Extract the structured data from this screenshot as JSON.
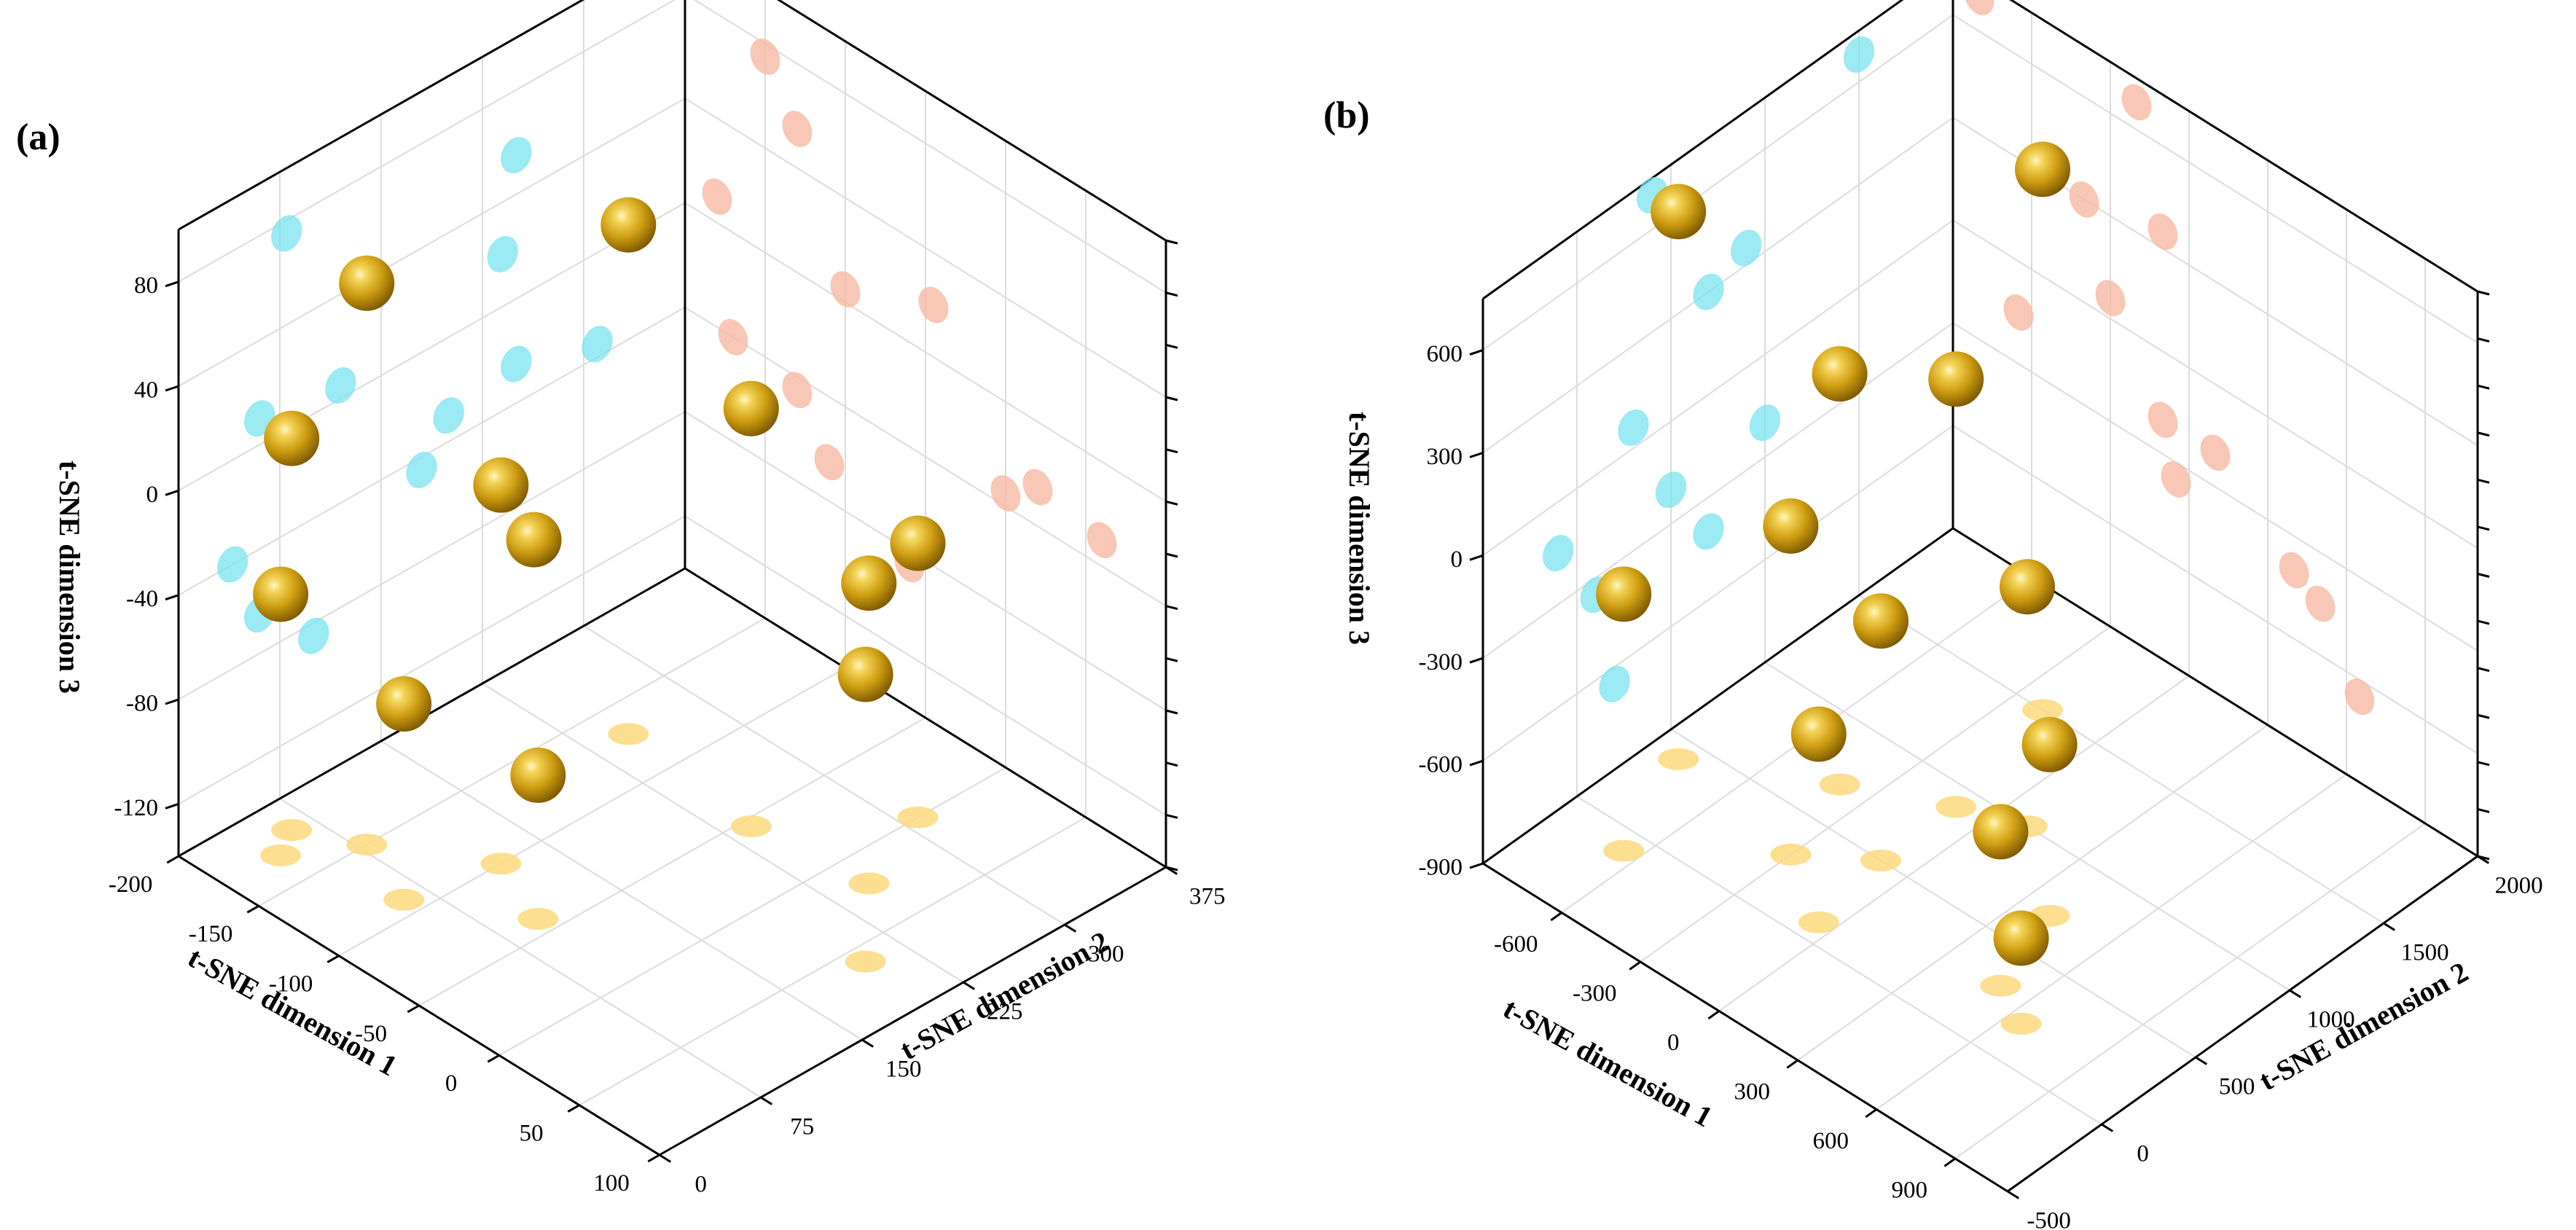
{
  "colors": {
    "proj_yz": "#7be3f0",
    "proj_xz": "#f7b9a3",
    "proj_xy": "#fcd97e",
    "sphere_light": "#fff3b8",
    "sphere_mid": "#e3b928",
    "sphere_dark": "#8a6300"
  },
  "chart_data": [
    {
      "type": "scatter",
      "subtype": "3d-scatter-with-wall-projections",
      "panel_label": "(a)",
      "xlabel": "t-SNE dimension 1",
      "ylabel": "t-SNE dimension 2",
      "zlabel": "t-SNE dimension 3",
      "xlim": [
        -200,
        100
      ],
      "ylim": [
        0,
        375
      ],
      "zlim": [
        -140,
        100
      ],
      "x_ticks": [
        "-200",
        "-150",
        "-100",
        "-50",
        "0",
        "50",
        "100"
      ],
      "y_ticks": [
        "0",
        "75",
        "150",
        "225",
        "300",
        "375"
      ],
      "z_ticks": [
        "-120",
        "-80",
        "-40",
        "0",
        "40",
        "80"
      ],
      "grid": true,
      "points": [
        {
          "x": -150,
          "y": 80,
          "z": 75
        },
        {
          "x": -130,
          "y": 250,
          "z": 55
        },
        {
          "x": -45,
          "y": 240,
          "z": 20
        },
        {
          "x": -180,
          "y": 60,
          "z": 10
        },
        {
          "x": -100,
          "y": 120,
          "z": 5
        },
        {
          "x": 0,
          "y": 310,
          "z": -35
        },
        {
          "x": -170,
          "y": 40,
          "z": -40
        },
        {
          "x": -130,
          "y": 180,
          "z": -45
        },
        {
          "x": -60,
          "y": 100,
          "z": -85
        },
        {
          "x": -110,
          "y": 60,
          "z": -65
        },
        {
          "x": 60,
          "y": 200,
          "z": -30
        },
        {
          "x": 20,
          "y": 250,
          "z": -25
        }
      ]
    },
    {
      "type": "scatter",
      "subtype": "3d-scatter-with-wall-projections",
      "panel_label": "(b)",
      "xlabel": "t-SNE dimension 1",
      "ylabel": "t-SNE dimension 2",
      "zlabel": "t-SNE dimension 3",
      "xlim": [
        -900,
        1100
      ],
      "ylim": [
        -500,
        2000
      ],
      "zlim": [
        -900,
        750
      ],
      "x_ticks": [
        "-600",
        "-300",
        "0",
        "300",
        "600",
        "900"
      ],
      "y_ticks": [
        "-500",
        "0",
        "500",
        "1000",
        "1500",
        "2000"
      ],
      "z_ticks": [
        "-900",
        "-600",
        "-300",
        "0",
        "300",
        "600"
      ],
      "grid": true,
      "points": [
        {
          "x": -800,
          "y": 400,
          "z": 700
        },
        {
          "x": -200,
          "y": 1500,
          "z": 680
        },
        {
          "x": -400,
          "y": 700,
          "z": 300
        },
        {
          "x": -100,
          "y": 900,
          "z": 350
        },
        {
          "x": -300,
          "y": 300,
          "z": 60
        },
        {
          "x": -650,
          "y": -100,
          "z": -150
        },
        {
          "x": -100,
          "y": 500,
          "z": -200
        },
        {
          "x": 100,
          "y": 1000,
          "z": -200
        },
        {
          "x": -50,
          "y": 100,
          "z": -350
        },
        {
          "x": 400,
          "y": 700,
          "z": -400
        },
        {
          "x": 500,
          "y": 300,
          "z": -450
        },
        {
          "x": 650,
          "y": 200,
          "z": -650
        }
      ]
    }
  ]
}
